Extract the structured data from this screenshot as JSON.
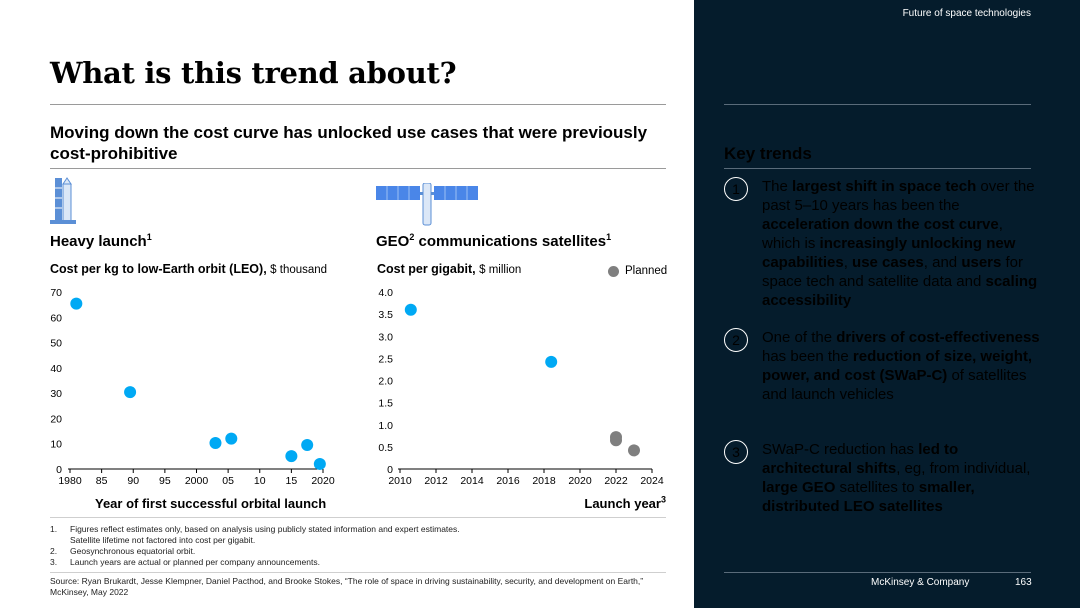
{
  "page": {
    "title": "What is this trend about?",
    "subtitle": "Moving down the cost curve has unlocked use cases that were previously cost-prohibitive"
  },
  "left_panel": {
    "title": "Heavy launch",
    "title_sup": "1",
    "metric_bold": "Cost per kg to low-Earth orbit (LEO),",
    "metric_unit": "$ thousand",
    "xlabel": "Year of first successful orbital launch",
    "icon": "rocket-icon"
  },
  "right_panel": {
    "title_a": "GEO",
    "title_a_sup": "2",
    "title_b": " communications satellites",
    "title_b_sup": "1",
    "metric_bold": "Cost per gigabit,",
    "metric_unit": "$ million",
    "xlabel": "Launch year",
    "xlabel_sup": "3",
    "legend": "Planned",
    "icon": "satellite-icon"
  },
  "chart_data": [
    {
      "type": "scatter",
      "title": "Heavy launch",
      "ylabel": "Cost per kg to low-Earth orbit (LEO), $ thousand",
      "xlabel": "Year of first successful orbital launch",
      "xlim": [
        1980,
        2020
      ],
      "ylim": [
        0,
        70
      ],
      "x_ticks": [
        1980,
        1985,
        1990,
        1995,
        2000,
        2005,
        2010,
        2015,
        2020
      ],
      "x_tick_labels": [
        "1980",
        "85",
        "90",
        "95",
        "2000",
        "05",
        "10",
        "15",
        "2020"
      ],
      "y_ticks": [
        0,
        10,
        20,
        30,
        40,
        50,
        60,
        70
      ],
      "y_tick_labels": [
        "0",
        "10",
        "20",
        "30",
        "40",
        "50",
        "60",
        "70"
      ],
      "colors": {
        "actual": "#00a9f4"
      },
      "points": [
        {
          "x": 1981,
          "y": 65.4
        },
        {
          "x": 1989.5,
          "y": 30.4
        },
        {
          "x": 2003,
          "y": 10.3
        },
        {
          "x": 2005.5,
          "y": 12.0
        },
        {
          "x": 2015,
          "y": 5.1
        },
        {
          "x": 2017.5,
          "y": 9.5
        },
        {
          "x": 2019.5,
          "y": 2.0
        }
      ]
    },
    {
      "type": "scatter",
      "title": "GEO communications satellites",
      "ylabel": "Cost per gigabit, $ million",
      "xlabel": "Launch year",
      "xlim": [
        2010,
        2024
      ],
      "ylim": [
        0,
        4.0
      ],
      "x_ticks": [
        2010,
        2012,
        2014,
        2016,
        2018,
        2020,
        2022,
        2024
      ],
      "x_tick_labels": [
        "2010",
        "2012",
        "2014",
        "2016",
        "2018",
        "2020",
        "2022",
        "2024"
      ],
      "y_ticks": [
        0,
        0.5,
        1.0,
        1.5,
        2.0,
        2.5,
        3.0,
        3.5,
        4.0
      ],
      "y_tick_labels": [
        "0",
        "0.5",
        "1.0",
        "1.5",
        "2.0",
        "2.5",
        "3.0",
        "3.5",
        "4.0"
      ],
      "colors": {
        "actual": "#00a9f4",
        "planned": "#7f7f7f"
      },
      "legend": [
        "Planned"
      ],
      "points": [
        {
          "x": 2010.6,
          "y": 3.6,
          "planned": false
        },
        {
          "x": 2018.4,
          "y": 2.42,
          "planned": false
        },
        {
          "x": 2022,
          "y": 0.72,
          "planned": true
        },
        {
          "x": 2022,
          "y": 0.65,
          "planned": true
        },
        {
          "x": 2023,
          "y": 0.42,
          "planned": true
        }
      ]
    }
  ],
  "footnotes": [
    {
      "n": "1.",
      "lines": [
        "Figures reflect estimates only, based on analysis using publicly stated information and expert estimates.",
        "Satellite lifetime not factored into cost per gigabit."
      ]
    },
    {
      "n": "2.",
      "lines": [
        "Geosynchronous equatorial orbit."
      ]
    },
    {
      "n": "3.",
      "lines": [
        "Launch years are actual or planned per company announcements."
      ]
    }
  ],
  "source": "Source: Ryan Brukardt, Jesse Klempner, Daniel Pacthod, and Brooke Stokes, “The role of space in driving sustainability, security, and development on Earth,” McKinsey, May 2022",
  "sidebar": {
    "header": "Future of space technologies",
    "key_trends_title": "Key trends",
    "trends": [
      {
        "num": "1",
        "segments": [
          {
            "t": "The ",
            "b": false
          },
          {
            "t": "largest shift in space tech",
            "b": true
          },
          {
            "t": " over the past 5–10 years has been the ",
            "b": false
          },
          {
            "t": "acceleration down the cost curve",
            "b": true
          },
          {
            "t": ", which is ",
            "b": false
          },
          {
            "t": "increasingly unlocking new capabilities",
            "b": true
          },
          {
            "t": ", ",
            "b": false
          },
          {
            "t": "use cases",
            "b": true
          },
          {
            "t": ", and ",
            "b": false
          },
          {
            "t": "users",
            "b": true
          },
          {
            "t": " for space tech and satellite data and ",
            "b": false
          },
          {
            "t": "scaling accessibility",
            "b": true
          }
        ]
      },
      {
        "num": "2",
        "segments": [
          {
            "t": "One of the ",
            "b": false
          },
          {
            "t": "drivers of cost-effectiveness",
            "b": true
          },
          {
            "t": " has been the ",
            "b": false
          },
          {
            "t": "reduction of size, weight, power, and cost (SWaP-C)",
            "b": true
          },
          {
            "t": " of satellites and launch vehicles",
            "b": false
          }
        ]
      },
      {
        "num": "3",
        "segments": [
          {
            "t": "SWaP-C reduction has ",
            "b": false
          },
          {
            "t": "led to architectural shifts",
            "b": true
          },
          {
            "t": ", eg, from individual, ",
            "b": false
          },
          {
            "t": "large GEO",
            "b": true
          },
          {
            "t": " satellites to ",
            "b": false
          },
          {
            "t": "smaller, distributed LEO satellites",
            "b": true
          }
        ]
      }
    ],
    "footer_company": "McKinsey & Company",
    "footer_page": "163"
  }
}
